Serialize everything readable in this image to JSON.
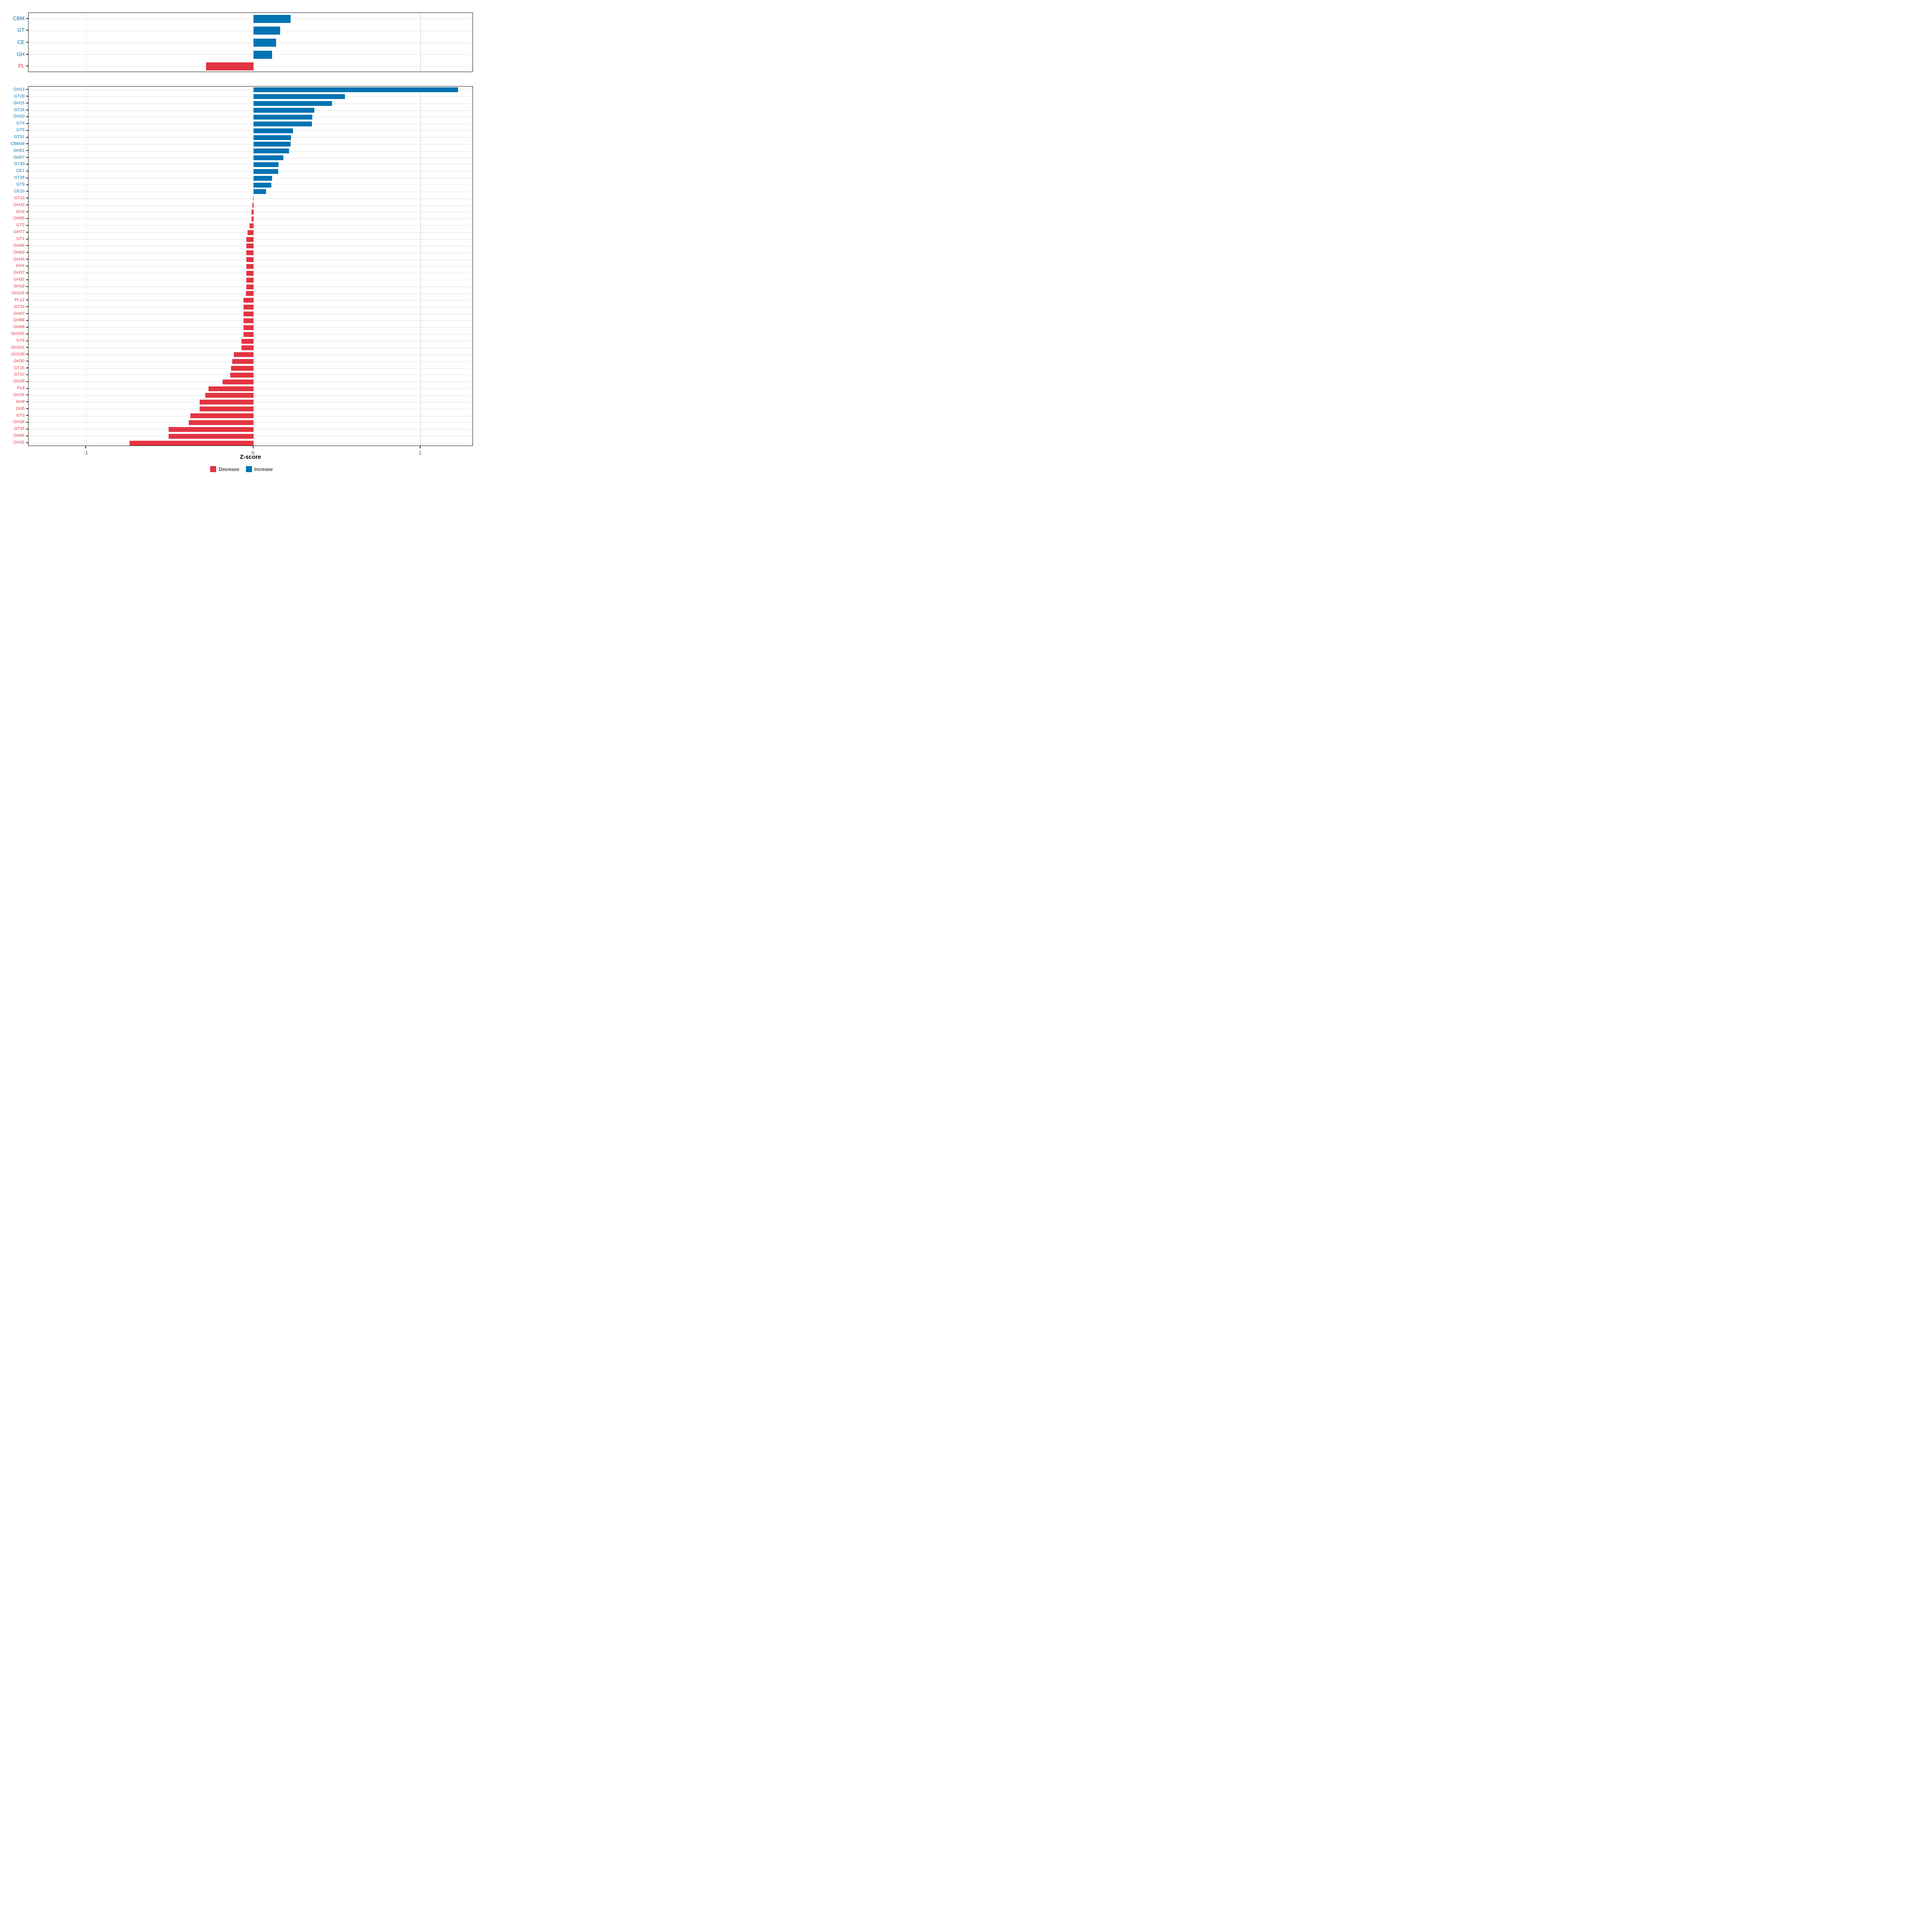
{
  "figure": {
    "axis_title": "Z-score",
    "colors": {
      "increase": "#0073B2",
      "decrease": "#E33442",
      "grid": "#E2E2E2",
      "axis_text": "#4D4D4D",
      "panel_border": "#1A1A1A",
      "background": "#FFFFFF"
    },
    "legend": [
      {
        "label": "Decrease",
        "color": "#E33442"
      },
      {
        "label": "Increase",
        "color": "#0073B2"
      }
    ],
    "x_ticks": [
      -1,
      0,
      1
    ],
    "x_tick_labels": [
      "-1",
      "0",
      "1"
    ],
    "x_domain": [
      -1.345,
      1.316
    ]
  },
  "chart_data": [
    {
      "type": "bar",
      "orientation": "horizontal",
      "panel": "top",
      "categories": [
        "CBM",
        "GT",
        "CE",
        "GH",
        "PL"
      ],
      "values": [
        0.222,
        0.161,
        0.137,
        0.111,
        -0.283
      ],
      "xlabel": "Z-score",
      "xlim": [
        -1.345,
        1.316
      ],
      "grid": true,
      "legend_position": "bottom"
    },
    {
      "type": "bar",
      "orientation": "horizontal",
      "panel": "bottom",
      "categories": [
        "GH13",
        "GT20",
        "GH15",
        "GT26",
        "GH20",
        "GT4",
        "GT5",
        "GT51",
        "CBM48",
        "GH51",
        "GH57",
        "GT30",
        "CE1",
        "GT28",
        "GT9",
        "CE10",
        "GT19",
        "GH33",
        "GH3",
        "GH95",
        "GT2",
        "GH77",
        "GT1",
        "GH66",
        "GH63",
        "GH43",
        "GH4",
        "GH37",
        "GH32",
        "GH18",
        "GH116",
        "PL12",
        "GT23",
        "GH97",
        "GH88",
        "GH68",
        "GH105",
        "GT6",
        "GH101",
        "GH130",
        "GH30",
        "GT25",
        "GT10",
        "GH29",
        "PL8",
        "GH26",
        "GH9",
        "GH5",
        "GT3",
        "GH38",
        "GT35",
        "GH65",
        "GH31"
      ],
      "values": [
        1.225,
        0.547,
        0.47,
        0.364,
        0.352,
        0.35,
        0.237,
        0.225,
        0.222,
        0.214,
        0.179,
        0.15,
        0.148,
        0.111,
        0.106,
        0.075,
        -0.002,
        -0.007,
        -0.011,
        -0.012,
        -0.023,
        -0.034,
        -0.042,
        -0.042,
        -0.042,
        -0.043,
        -0.043,
        -0.043,
        -0.043,
        -0.043,
        -0.044,
        -0.058,
        -0.059,
        -0.059,
        -0.059,
        -0.059,
        -0.06,
        -0.07,
        -0.07,
        -0.118,
        -0.127,
        -0.133,
        -0.138,
        -0.184,
        -0.269,
        -0.288,
        -0.322,
        -0.322,
        -0.376,
        -0.386,
        -0.506,
        -0.506,
        -0.74
      ],
      "xlabel": "Z-score",
      "xlim": [
        -1.345,
        1.316
      ],
      "grid": true,
      "legend_position": "bottom"
    }
  ]
}
